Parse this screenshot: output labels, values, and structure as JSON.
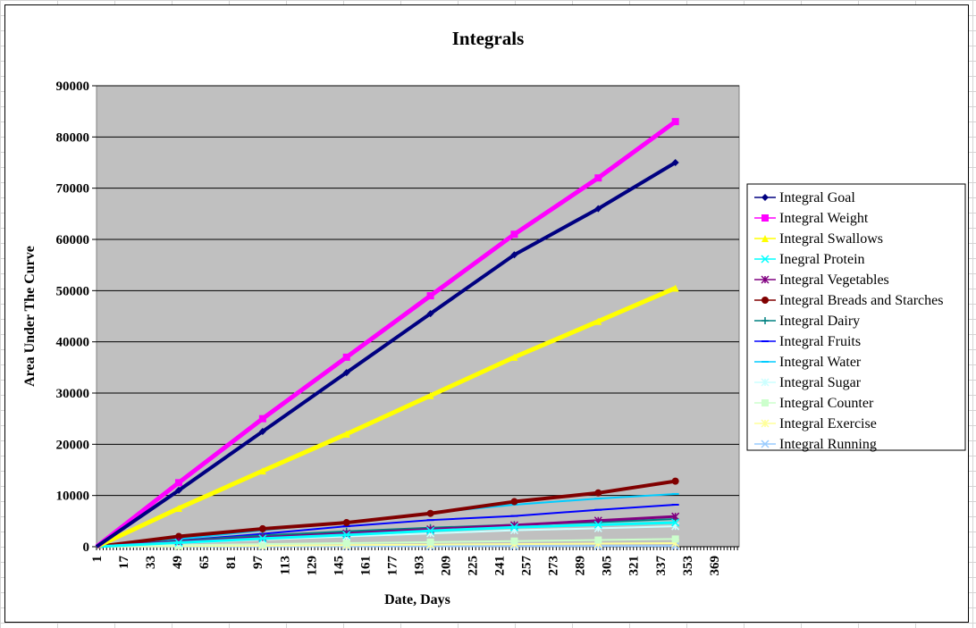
{
  "chart_data": {
    "type": "line",
    "title": "Integrals",
    "xlabel": "Date, Days",
    "ylabel": "Area Under The Curve",
    "x_ticks": [
      "1",
      "17",
      "33",
      "49",
      "65",
      "81",
      "97",
      "113",
      "129",
      "145",
      "161",
      "177",
      "193",
      "209",
      "225",
      "241",
      "257",
      "273",
      "289",
      "305",
      "321",
      "337",
      "353",
      "369"
    ],
    "xlim": [
      1,
      384
    ],
    "ylim": [
      0,
      90000
    ],
    "y_ticks": [
      0,
      10000,
      20000,
      30000,
      40000,
      50000,
      60000,
      70000,
      80000,
      90000
    ],
    "grid": true,
    "background": "#c0c0c0",
    "legend_position": "right",
    "series": [
      {
        "name": "Integral Goal",
        "color": "#000080",
        "marker": "diamond",
        "width": 4,
        "x": [
          1,
          50,
          100,
          150,
          200,
          250,
          300,
          346
        ],
        "y": [
          0,
          11000,
          22500,
          34000,
          45500,
          57000,
          66000,
          75000
        ]
      },
      {
        "name": "Integral Weight",
        "color": "#ff00ff",
        "marker": "square",
        "width": 5,
        "x": [
          1,
          50,
          100,
          150,
          200,
          250,
          300,
          346
        ],
        "y": [
          0,
          12500,
          25000,
          37000,
          49000,
          61000,
          72000,
          83000
        ]
      },
      {
        "name": "Integral Swallows",
        "color": "#ffff00",
        "marker": "triangle",
        "width": 5,
        "x": [
          1,
          50,
          100,
          150,
          200,
          250,
          300,
          346
        ],
        "y": [
          0,
          7500,
          14800,
          22000,
          29500,
          37000,
          44000,
          50500
        ]
      },
      {
        "name": "Inegral Protein",
        "color": "#00ffff",
        "marker": "x",
        "width": 3,
        "x": [
          1,
          50,
          100,
          150,
          200,
          250,
          300,
          346
        ],
        "y": [
          0,
          800,
          1600,
          2300,
          3100,
          3800,
          4300,
          4700
        ]
      },
      {
        "name": "Integral Vegetables",
        "color": "#800080",
        "marker": "star",
        "width": 3,
        "x": [
          1,
          50,
          100,
          150,
          200,
          250,
          300,
          346
        ],
        "y": [
          0,
          1000,
          1800,
          2600,
          3400,
          4200,
          5100,
          5900
        ]
      },
      {
        "name": "Integral Breads and Starches",
        "color": "#800000",
        "marker": "circle",
        "width": 4,
        "x": [
          1,
          50,
          100,
          150,
          200,
          250,
          300,
          346
        ],
        "y": [
          0,
          2000,
          3500,
          4700,
          6500,
          8800,
          10500,
          12800
        ]
      },
      {
        "name": "Integral Dairy",
        "color": "#008080",
        "marker": "plus",
        "width": 2,
        "x": [
          1,
          50,
          100,
          150,
          200,
          250,
          300,
          346
        ],
        "y": [
          0,
          1200,
          2200,
          3000,
          3700,
          4300,
          4800,
          5400
        ]
      },
      {
        "name": "Integral Fruits",
        "color": "#0000ff",
        "marker": "dash",
        "width": 2,
        "x": [
          1,
          50,
          100,
          150,
          200,
          250,
          300,
          346
        ],
        "y": [
          0,
          1200,
          2500,
          4000,
          5200,
          6000,
          7200,
          8200
        ]
      },
      {
        "name": "Integral Water",
        "color": "#00ccff",
        "marker": "dash",
        "width": 2,
        "x": [
          1,
          50,
          100,
          150,
          200,
          250,
          300,
          346
        ],
        "y": [
          0,
          1500,
          3200,
          4800,
          6600,
          8200,
          9400,
          10300
        ]
      },
      {
        "name": "Integral Sugar",
        "color": "#ccffff",
        "marker": "star",
        "width": 2,
        "x": [
          1,
          50,
          100,
          150,
          200,
          250,
          300,
          346
        ],
        "y": [
          0,
          700,
          1400,
          2000,
          2600,
          3200,
          3600,
          4000
        ]
      },
      {
        "name": "Integral Counter",
        "color": "#ccffcc",
        "marker": "square",
        "width": 2,
        "x": [
          1,
          50,
          100,
          150,
          200,
          250,
          300,
          346
        ],
        "y": [
          0,
          300,
          500,
          700,
          900,
          1100,
          1300,
          1500
        ]
      },
      {
        "name": "Integral Exercise",
        "color": "#ffff99",
        "marker": "star",
        "width": 2,
        "x": [
          1,
          50,
          100,
          150,
          200,
          250,
          300,
          346
        ],
        "y": [
          0,
          100,
          200,
          300,
          400,
          500,
          600,
          700
        ]
      },
      {
        "name": "Integral Running",
        "color": "#99ccff",
        "marker": "x",
        "width": 2,
        "x": [
          1,
          50,
          100,
          150,
          200,
          250,
          300,
          346
        ],
        "y": [
          0,
          20,
          40,
          60,
          80,
          100,
          120,
          140
        ]
      }
    ]
  }
}
